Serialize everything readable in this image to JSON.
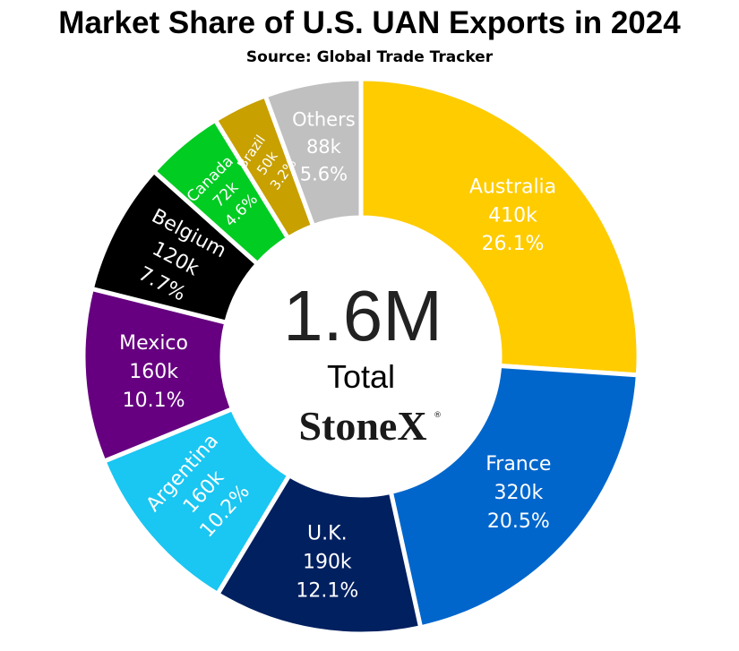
{
  "title": "Market Share of U.S. UAN Exports in 2024",
  "subtitle": "Source: Global Trade Tracker",
  "center": {
    "total": "1.6M",
    "caption": "Total",
    "logo": "StoneX"
  },
  "chart_data": {
    "type": "pie",
    "title": "Market Share of U.S. UAN Exports in 2024",
    "subtitle": "Source: Global Trade Tracker",
    "donut": true,
    "total_label": "1.6M",
    "slices": [
      {
        "label": "Australia",
        "value_label": "410k",
        "pct_label": "26.1%",
        "value": 410,
        "pct": 26.1,
        "color": "#FFCC00",
        "text_color": "#ffffff"
      },
      {
        "label": "France",
        "value_label": "320k",
        "pct_label": "20.5%",
        "value": 320,
        "pct": 20.5,
        "color": "#0066CC",
        "text_color": "#ffffff"
      },
      {
        "label": "U.K.",
        "value_label": "190k",
        "pct_label": "12.1%",
        "value": 190,
        "pct": 12.1,
        "color": "#002060",
        "text_color": "#ffffff"
      },
      {
        "label": "Argentina",
        "value_label": "160k",
        "pct_label": "10.2%",
        "value": 160,
        "pct": 10.2,
        "color": "#1AC6F2",
        "text_color": "#ffffff"
      },
      {
        "label": "Mexico",
        "value_label": "160k",
        "pct_label": "10.1%",
        "value": 160,
        "pct": 10.1,
        "color": "#660080",
        "text_color": "#ffffff"
      },
      {
        "label": "Belgium",
        "value_label": "120k",
        "pct_label": "7.7%",
        "value": 120,
        "pct": 7.7,
        "color": "#000000",
        "text_color": "#ffffff"
      },
      {
        "label": "Canada",
        "value_label": "72k",
        "pct_label": "4.6%",
        "value": 72,
        "pct": 4.6,
        "color": "#00CC22",
        "text_color": "#ffffff"
      },
      {
        "label": "Brazil",
        "value_label": "50k",
        "pct_label": "3.2%",
        "value": 50,
        "pct": 3.2,
        "color": "#C8A000",
        "text_color": "#ffffff"
      },
      {
        "label": "Others",
        "value_label": "88k",
        "pct_label": "5.6%",
        "value": 88,
        "pct": 5.6,
        "color": "#C0C0C0",
        "text_color": "#ffffff"
      }
    ]
  }
}
